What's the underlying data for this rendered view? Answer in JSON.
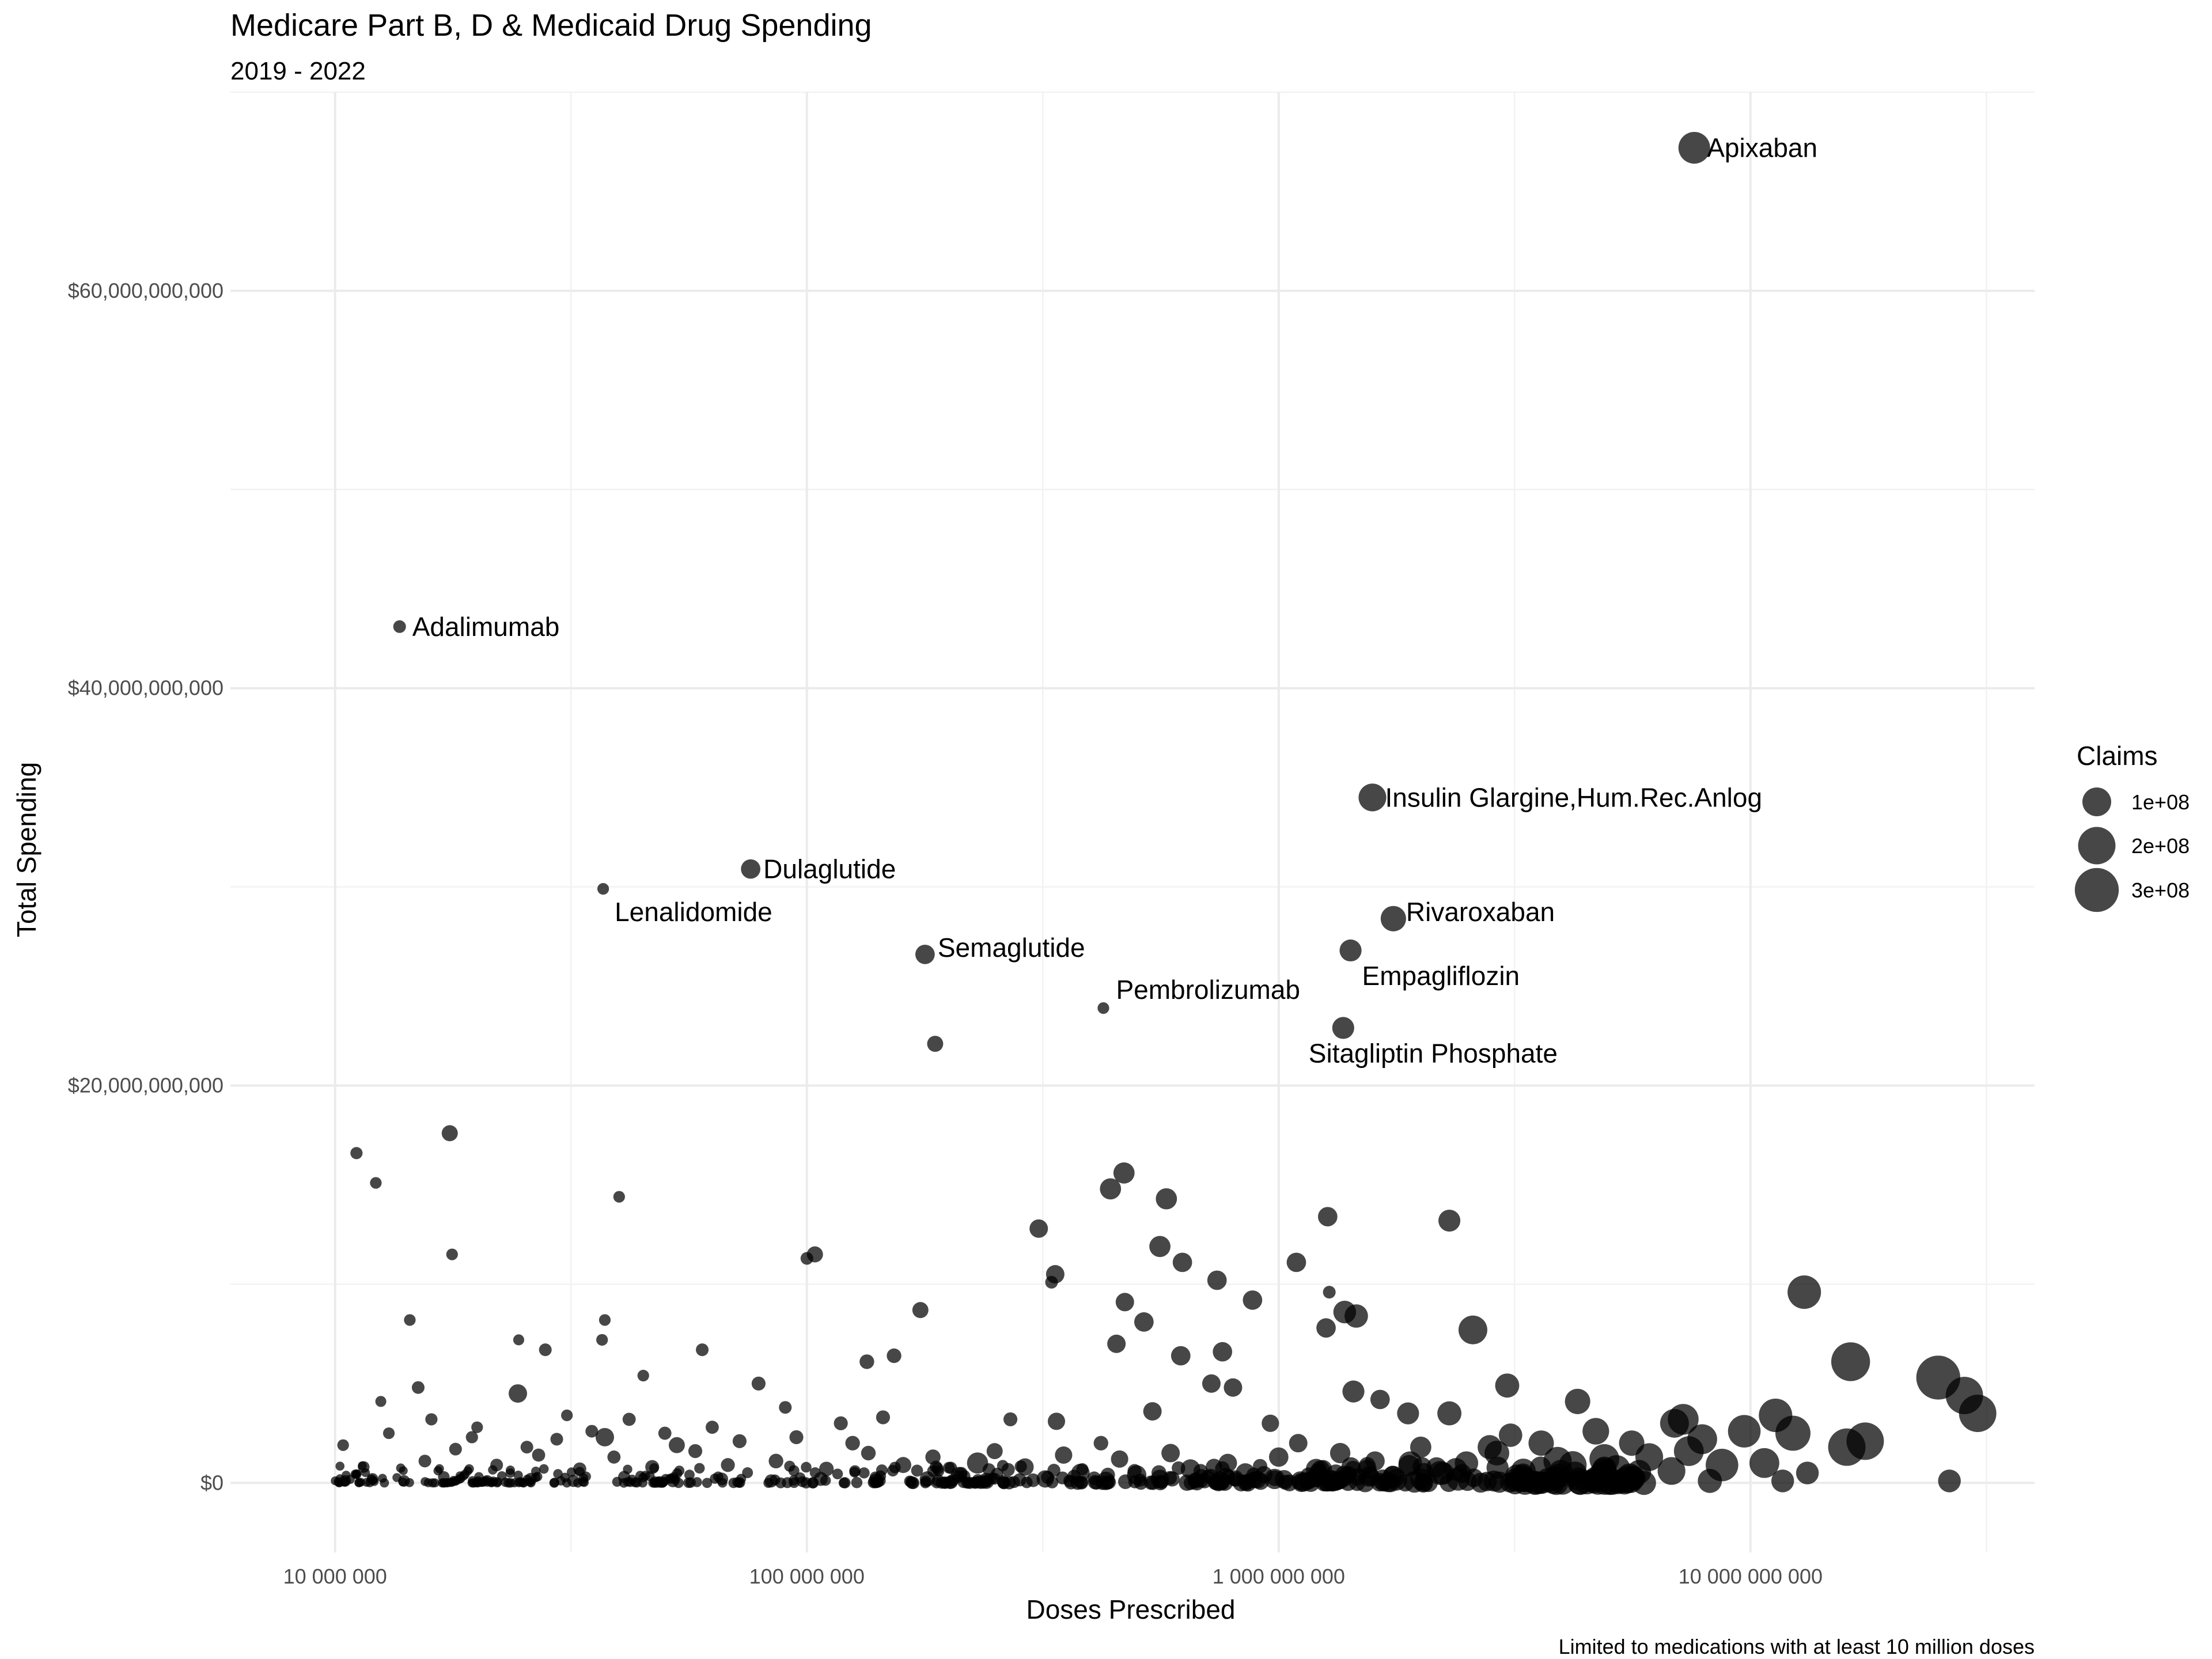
{
  "chart_data": {
    "type": "scatter",
    "title": "Medicare Part B, D & Medicaid Drug Spending",
    "subtitle": "2019 - 2022",
    "xlabel": "Doses Prescribed",
    "ylabel": "Total Spending",
    "caption": "Limited to medications with at least 10 million doses",
    "x_scale": "log10",
    "xlim": [
      6000000,
      40000000000
    ],
    "ylim": [
      -3500000000,
      70000000000
    ],
    "x_ticks": [
      {
        "value": 10000000,
        "label": "10 000 000"
      },
      {
        "value": 100000000,
        "label": "100 000 000"
      },
      {
        "value": 1000000000,
        "label": "1 000 000 000"
      },
      {
        "value": 10000000000,
        "label": "10 000 000 000"
      }
    ],
    "y_ticks": [
      {
        "value": 0,
        "label": "$0"
      },
      {
        "value": 20000000000,
        "label": "$20,000,000,000"
      },
      {
        "value": 40000000000,
        "label": "$40,000,000,000"
      },
      {
        "value": 60000000000,
        "label": "$60,000,000,000"
      }
    ],
    "grid": true,
    "legend": {
      "title": "Claims",
      "position": "right",
      "entries": [
        {
          "label": "1e+08",
          "value": 100000000
        },
        {
          "label": "2e+08",
          "value": 200000000
        },
        {
          "label": "3e+08",
          "value": 300000000
        }
      ]
    },
    "size_variable": "Claims",
    "labeled_points": [
      {
        "label": "Apixaban",
        "x": 7600000000,
        "y": 67200000000,
        "claims": 130000000
      },
      {
        "label": "Adalimumab",
        "x": 13700000,
        "y": 43100000000,
        "claims": 5000000
      },
      {
        "label": "Insulin Glargine,Hum.Rec.Anlog",
        "x": 1580000000,
        "y": 34500000000,
        "claims": 90000000
      },
      {
        "label": "Dulaglutide",
        "x": 76000000,
        "y": 30900000000,
        "claims": 30000000
      },
      {
        "label": "Lenalidomide",
        "x": 37000000,
        "y": 29900000000,
        "claims": 3000000
      },
      {
        "label": "Rivaroxaban",
        "x": 1750000000,
        "y": 28400000000,
        "claims": 70000000
      },
      {
        "label": "Empagliflozin",
        "x": 1420000000,
        "y": 26800000000,
        "claims": 45000000
      },
      {
        "label": "Semaglutide",
        "x": 178000000,
        "y": 26600000000,
        "claims": 30000000
      },
      {
        "label": "Pembrolizumab",
        "x": 425000000,
        "y": 23900000000,
        "claims": 3000000
      },
      {
        "label": "Sitagliptin Phosphate",
        "x": 1370000000,
        "y": 22900000000,
        "claims": 45000000
      }
    ],
    "points": [
      {
        "x": 187000000,
        "y": 22100000000,
        "claims": 15000000
      },
      {
        "x": 11100000,
        "y": 16600000000,
        "claims": 4000000
      },
      {
        "x": 12200000,
        "y": 15100000000,
        "claims": 3000000
      },
      {
        "x": 17500000,
        "y": 17600000000,
        "claims": 15000000
      },
      {
        "x": 17700000,
        "y": 11500000000,
        "claims": 3000000
      },
      {
        "x": 40000000,
        "y": 14400000000,
        "claims": 3000000
      },
      {
        "x": 14400000,
        "y": 8200000000,
        "claims": 3000000
      },
      {
        "x": 470000000,
        "y": 15600000000,
        "claims": 40000000
      },
      {
        "x": 440000000,
        "y": 14800000000,
        "claims": 40000000
      },
      {
        "x": 578000000,
        "y": 14300000000,
        "claims": 40000000
      },
      {
        "x": 310000000,
        "y": 12800000000,
        "claims": 25000000
      },
      {
        "x": 1270000000,
        "y": 13400000000,
        "claims": 30000000
      },
      {
        "x": 2300000000,
        "y": 13200000000,
        "claims": 45000000
      },
      {
        "x": 560000000,
        "y": 11900000000,
        "claims": 40000000
      },
      {
        "x": 625000000,
        "y": 11100000000,
        "claims": 30000000
      },
      {
        "x": 1090000000,
        "y": 11100000000,
        "claims": 30000000
      },
      {
        "x": 104000000,
        "y": 11500000000,
        "claims": 15000000
      },
      {
        "x": 100000000,
        "y": 11300000000,
        "claims": 5000000
      },
      {
        "x": 336000000,
        "y": 10500000000,
        "claims": 25000000
      },
      {
        "x": 330000000,
        "y": 10100000000,
        "claims": 5000000
      },
      {
        "x": 740000000,
        "y": 10200000000,
        "claims": 30000000
      },
      {
        "x": 880000000,
        "y": 9200000000,
        "claims": 30000000
      },
      {
        "x": 472000000,
        "y": 9100000000,
        "claims": 25000000
      },
      {
        "x": 1280000000,
        "y": 9600000000,
        "claims": 5000000
      },
      {
        "x": 1380000000,
        "y": 8600000000,
        "claims": 50000000
      },
      {
        "x": 1460000000,
        "y": 8400000000,
        "claims": 55000000
      },
      {
        "x": 1260000000,
        "y": 7800000000,
        "claims": 30000000
      },
      {
        "x": 518000000,
        "y": 8100000000,
        "claims": 30000000
      },
      {
        "x": 174000000,
        "y": 8700000000,
        "claims": 15000000
      },
      {
        "x": 37300000,
        "y": 8200000000,
        "claims": 3000000
      },
      {
        "x": 36800000,
        "y": 7200000000,
        "claims": 3000000
      },
      {
        "x": 24500000,
        "y": 7200000000,
        "claims": 2000000
      },
      {
        "x": 453000000,
        "y": 7000000000,
        "claims": 25000000
      },
      {
        "x": 2580000000,
        "y": 7700000000,
        "claims": 100000000
      },
      {
        "x": 13000000000,
        "y": 9600000000,
        "claims": 150000000
      },
      {
        "x": 16300000000,
        "y": 6100000000,
        "claims": 220000000
      },
      {
        "x": 25000000000,
        "y": 5300000000,
        "claims": 300000000
      },
      {
        "x": 28400000000,
        "y": 4400000000,
        "claims": 200000000
      },
      {
        "x": 30300000000,
        "y": 3500000000,
        "claims": 200000000
      },
      {
        "x": 11300000000,
        "y": 3400000000,
        "claims": 150000000
      },
      {
        "x": 17500000000,
        "y": 2100000000,
        "claims": 200000000
      },
      {
        "x": 16000000000,
        "y": 1800000000,
        "claims": 200000000
      },
      {
        "x": 12300000000,
        "y": 2500000000,
        "claims": 170000000
      },
      {
        "x": 9700000000,
        "y": 2600000000,
        "claims": 140000000
      },
      {
        "x": 7200000000,
        "y": 3200000000,
        "claims": 120000000
      },
      {
        "x": 6900000000,
        "y": 3000000000,
        "claims": 100000000
      },
      {
        "x": 7900000000,
        "y": 2200000000,
        "claims": 110000000
      },
      {
        "x": 8700000000,
        "y": 900000000,
        "claims": 140000000
      },
      {
        "x": 10700000000,
        "y": 1000000000,
        "claims": 110000000
      },
      {
        "x": 7400000000,
        "y": 1600000000,
        "claims": 110000000
      },
      {
        "x": 6100000000,
        "y": 1300000000,
        "claims": 90000000
      },
      {
        "x": 5600000000,
        "y": 2000000000,
        "claims": 70000000
      },
      {
        "x": 4700000000,
        "y": 2600000000,
        "claims": 80000000
      },
      {
        "x": 4300000000,
        "y": 4100000000,
        "claims": 70000000
      },
      {
        "x": 3050000000,
        "y": 4900000000,
        "claims": 60000000
      },
      {
        "x": 2300000000,
        "y": 3500000000,
        "claims": 60000000
      },
      {
        "x": 1880000000,
        "y": 3500000000,
        "claims": 45000000
      },
      {
        "x": 1440000000,
        "y": 4600000000,
        "claims": 45000000
      },
      {
        "x": 1640000000,
        "y": 4200000000,
        "claims": 30000000
      },
      {
        "x": 4900000000,
        "y": 1200000000,
        "claims": 110000000
      },
      {
        "x": 3900000000,
        "y": 1100000000,
        "claims": 95000000
      },
      {
        "x": 3600000000,
        "y": 2000000000,
        "claims": 70000000
      },
      {
        "x": 3100000000,
        "y": 2400000000,
        "claims": 55000000
      },
      {
        "x": 2800000000,
        "y": 1800000000,
        "claims": 60000000
      },
      {
        "x": 24400000,
        "y": 4500000000,
        "claims": 25000000
      },
      {
        "x": 37300000,
        "y": 2300000000,
        "claims": 25000000
      },
      {
        "x": 153000000,
        "y": 6400000000,
        "claims": 10000000
      },
      {
        "x": 134000000,
        "y": 6100000000,
        "claims": 10000000
      },
      {
        "x": 60000000,
        "y": 6700000000,
        "claims": 5000000
      },
      {
        "x": 27900000,
        "y": 6700000000,
        "claims": 5000000
      },
      {
        "x": 15000000,
        "y": 4800000000,
        "claims": 5000000
      },
      {
        "x": 620000000,
        "y": 6400000000,
        "claims": 30000000
      },
      {
        "x": 760000000,
        "y": 6600000000,
        "claims": 30000000
      },
      {
        "x": 720000000,
        "y": 5000000000,
        "claims": 25000000
      },
      {
        "x": 800000000,
        "y": 4800000000,
        "claims": 25000000
      },
      {
        "x": 540000000,
        "y": 3600000000,
        "claims": 25000000
      },
      {
        "x": 338000000,
        "y": 3100000000,
        "claims": 20000000
      },
      {
        "x": 960000000,
        "y": 3000000000,
        "claims": 20000000
      },
      {
        "x": 1100000000,
        "y": 2000000000,
        "claims": 25000000
      },
      {
        "x": 2000000000,
        "y": 1800000000,
        "claims": 40000000
      },
      {
        "x": 11700000000,
        "y": 100000000,
        "claims": 50000000
      },
      {
        "x": 13200000000,
        "y": 500000000,
        "claims": 50000000
      },
      {
        "x": 26400000000,
        "y": 100000000,
        "claims": 50000000
      },
      {
        "x": 8200000000,
        "y": 100000000,
        "claims": 60000000
      },
      {
        "x": 20000000,
        "y": 2800000000,
        "claims": 3000000
      },
      {
        "x": 31000000,
        "y": 3400000000,
        "claims": 3000000
      },
      {
        "x": 45000000,
        "y": 5400000000,
        "claims": 3000000
      },
      {
        "x": 53000000,
        "y": 1900000000,
        "claims": 15000000
      },
      {
        "x": 79000000,
        "y": 5000000000,
        "claims": 8000000
      },
      {
        "x": 90000000,
        "y": 3800000000,
        "claims": 5000000
      },
      {
        "x": 118000000,
        "y": 3000000000,
        "claims": 8000000
      },
      {
        "x": 230000000,
        "y": 1000000000,
        "claims": 40000000
      },
      {
        "x": 270000000,
        "y": 3200000000,
        "claims": 8000000
      },
      {
        "x": 420000000,
        "y": 2000000000,
        "claims": 10000000
      },
      {
        "x": 1900000000,
        "y": 1000000000,
        "claims": 55000000
      },
      {
        "x": 2500000000,
        "y": 1000000000,
        "claims": 55000000
      },
      {
        "x": 2900000000,
        "y": 1500000000,
        "claims": 65000000
      },
      {
        "x": 3300000000,
        "y": 600000000,
        "claims": 65000000
      },
      {
        "x": 4200000000,
        "y": 900000000,
        "claims": 90000000
      },
      {
        "x": 5200000000,
        "y": 700000000,
        "claims": 90000000
      },
      {
        "x": 6800000000,
        "y": 600000000,
        "claims": 90000000
      },
      {
        "x": 2200000000,
        "y": 500000000,
        "claims": 60000000
      },
      {
        "x": 1600000000,
        "y": 1100000000,
        "claims": 30000000
      },
      {
        "x": 1200000000,
        "y": 700000000,
        "claims": 35000000
      },
      {
        "x": 850000000,
        "y": 500000000,
        "claims": 30000000
      },
      {
        "x": 650000000,
        "y": 700000000,
        "claims": 30000000
      },
      {
        "x": 500000000,
        "y": 400000000,
        "claims": 30000000
      },
      {
        "x": 380000000,
        "y": 500000000,
        "claims": 25000000
      },
      {
        "x": 290000000,
        "y": 800000000,
        "claims": 20000000
      },
      {
        "x": 210000000,
        "y": 400000000,
        "claims": 15000000
      },
      {
        "x": 160000000,
        "y": 900000000,
        "claims": 15000000
      },
      {
        "x": 135000000,
        "y": 1500000000,
        "claims": 10000000
      },
      {
        "x": 110000000,
        "y": 700000000,
        "claims": 10000000
      },
      {
        "x": 86000000,
        "y": 1100000000,
        "claims": 10000000
      },
      {
        "x": 68000000,
        "y": 900000000,
        "claims": 8000000
      },
      {
        "x": 58000000,
        "y": 1600000000,
        "claims": 8000000
      },
      {
        "x": 47000000,
        "y": 800000000,
        "claims": 8000000
      },
      {
        "x": 39000000,
        "y": 1300000000,
        "claims": 6000000
      },
      {
        "x": 33000000,
        "y": 700000000,
        "claims": 6000000
      },
      {
        "x": 27000000,
        "y": 1400000000,
        "claims": 6000000
      },
      {
        "x": 22000000,
        "y": 900000000,
        "claims": 5000000
      },
      {
        "x": 18000000,
        "y": 1700000000,
        "claims": 5000000
      },
      {
        "x": 15500000,
        "y": 1100000000,
        "claims": 5000000
      },
      {
        "x": 13000000,
        "y": 2500000000,
        "claims": 3000000
      },
      {
        "x": 11500000,
        "y": 800000000,
        "claims": 3000000
      },
      {
        "x": 10400000,
        "y": 1900000000,
        "claims": 3000000
      },
      {
        "x": 12500000,
        "y": 4100000000,
        "claims": 2000000
      },
      {
        "x": 16000000,
        "y": 3200000000,
        "claims": 4000000
      },
      {
        "x": 19500000,
        "y": 2300000000,
        "claims": 4000000
      },
      {
        "x": 25500000,
        "y": 1800000000,
        "claims": 5000000
      },
      {
        "x": 29500000,
        "y": 2200000000,
        "claims": 5000000
      },
      {
        "x": 35000000,
        "y": 2600000000,
        "claims": 5000000
      },
      {
        "x": 42000000,
        "y": 3200000000,
        "claims": 6000000
      },
      {
        "x": 50000000,
        "y": 2500000000,
        "claims": 6000000
      },
      {
        "x": 63000000,
        "y": 2800000000,
        "claims": 6000000
      },
      {
        "x": 72000000,
        "y": 2100000000,
        "claims": 8000000
      },
      {
        "x": 95000000,
        "y": 2300000000,
        "claims": 8000000
      },
      {
        "x": 125000000,
        "y": 2000000000,
        "claims": 10000000
      },
      {
        "x": 145000000,
        "y": 3300000000,
        "claims": 8000000
      },
      {
        "x": 185000000,
        "y": 1300000000,
        "claims": 12000000
      },
      {
        "x": 250000000,
        "y": 1600000000,
        "claims": 15000000
      },
      {
        "x": 350000000,
        "y": 1400000000,
        "claims": 20000000
      },
      {
        "x": 460000000,
        "y": 1200000000,
        "claims": 20000000
      },
      {
        "x": 590000000,
        "y": 1500000000,
        "claims": 25000000
      },
      {
        "x": 780000000,
        "y": 1000000000,
        "claims": 25000000
      },
      {
        "x": 1000000000,
        "y": 1300000000,
        "claims": 30000000
      },
      {
        "x": 1350000000,
        "y": 1500000000,
        "claims": 35000000
      },
      {
        "x": 10500000,
        "y": 100000000,
        "claims": 3000000
      },
      {
        "x": 12000000,
        "y": 200000000,
        "claims": 3000000
      },
      {
        "x": 14000000,
        "y": 100000000,
        "claims": 3000000
      },
      {
        "x": 17000000,
        "y": 300000000,
        "claims": 3000000
      },
      {
        "x": 21000000,
        "y": 100000000,
        "claims": 3000000
      },
      {
        "x": 26000000,
        "y": 200000000,
        "claims": 4000000
      },
      {
        "x": 32000000,
        "y": 100000000,
        "claims": 4000000
      },
      {
        "x": 41000000,
        "y": 300000000,
        "claims": 4000000
      },
      {
        "x": 52000000,
        "y": 100000000,
        "claims": 5000000
      },
      {
        "x": 66000000,
        "y": 200000000,
        "claims": 5000000
      },
      {
        "x": 84000000,
        "y": 100000000,
        "claims": 6000000
      },
      {
        "x": 107000000,
        "y": 200000000,
        "claims": 8000000
      },
      {
        "x": 140000000,
        "y": 100000000,
        "claims": 10000000
      },
      {
        "x": 180000000,
        "y": 200000000,
        "claims": 12000000
      },
      {
        "x": 240000000,
        "y": 100000000,
        "claims": 15000000
      },
      {
        "x": 320000000,
        "y": 200000000,
        "claims": 20000000
      },
      {
        "x": 430000000,
        "y": 100000000,
        "claims": 25000000
      },
      {
        "x": 560000000,
        "y": 200000000,
        "claims": 25000000
      },
      {
        "x": 750000000,
        "y": 100000000,
        "claims": 30000000
      },
      {
        "x": 980000000,
        "y": 200000000,
        "claims": 35000000
      },
      {
        "x": 1300000000,
        "y": 100000000,
        "claims": 40000000
      },
      {
        "x": 1750000000,
        "y": 300000000,
        "claims": 45000000
      },
      {
        "x": 2400000000,
        "y": 200000000,
        "claims": 55000000
      },
      {
        "x": 3200000000,
        "y": 300000000,
        "claims": 65000000
      }
    ]
  }
}
